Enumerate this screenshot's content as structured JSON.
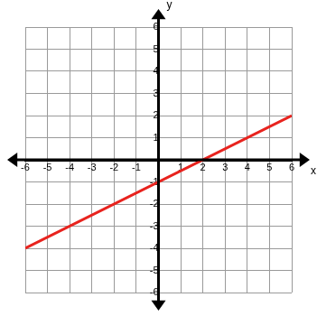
{
  "chart_data": {
    "type": "line",
    "x_label": "x",
    "y_label": "y",
    "x": [
      -6,
      6
    ],
    "values": [
      -4,
      2
    ],
    "color": "#e8231e",
    "xlim": [
      -6,
      6
    ],
    "xticks": [
      -6,
      -5,
      -4,
      -3,
      -2,
      -1,
      1,
      2,
      3,
      4,
      5,
      6
    ],
    "ylim": [
      -6,
      6
    ],
    "yticks": [
      -6,
      -5,
      -4,
      -3,
      -2,
      -1,
      1,
      2,
      3,
      4,
      5,
      6
    ],
    "grid": true
  }
}
